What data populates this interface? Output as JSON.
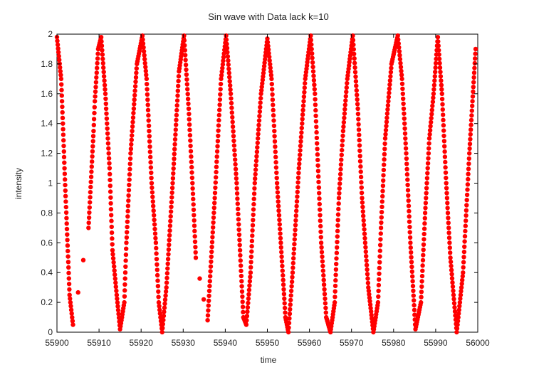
{
  "chart_data": {
    "type": "scatter",
    "title": "Sin wave with Data lack k=10",
    "xlabel": "time",
    "ylabel": "intensity",
    "xlim": [
      55900,
      56000
    ],
    "ylim": [
      0,
      2
    ],
    "xticks": [
      "55900",
      "55910",
      "55920",
      "55930",
      "55940",
      "55950",
      "55960",
      "55970",
      "55980",
      "55990",
      "56000"
    ],
    "yticks": [
      "0",
      "0.2",
      "0.4",
      "0.6",
      "0.8",
      "1",
      "1.2",
      "1.4",
      "1.6",
      "1.8",
      "2"
    ],
    "grid": false,
    "marker_color": "#ff0000",
    "period_approx": 10.1,
    "series": [
      {
        "name": "",
        "description_points": [
          [
            55900.0,
            1.98
          ],
          [
            55901.0,
            1.7
          ],
          [
            55902.0,
            0.95
          ],
          [
            55903.0,
            0.25
          ],
          [
            55903.8,
            0.05
          ],
          [
            55907.5,
            0.7
          ],
          [
            55908.7,
            1.35
          ],
          [
            55909.0,
            1.55
          ],
          [
            55909.8,
            1.9
          ],
          [
            55910.5,
            1.98
          ],
          [
            55911.5,
            1.6
          ],
          [
            55912.5,
            1.1
          ],
          [
            55913.2,
            0.55
          ],
          [
            55914.2,
            0.25
          ],
          [
            55915.0,
            0.02
          ],
          [
            55916.0,
            0.2
          ],
          [
            55916.5,
            0.6
          ],
          [
            55917.5,
            1.2
          ],
          [
            55919.0,
            1.8
          ],
          [
            55920.3,
            1.99
          ],
          [
            55921.3,
            1.7
          ],
          [
            55922.5,
            1.0
          ],
          [
            55923.5,
            0.6
          ],
          [
            55924.2,
            0.2
          ],
          [
            55925.0,
            0.0
          ],
          [
            55926.0,
            0.3
          ],
          [
            55927.5,
            1.0
          ],
          [
            55929.0,
            1.75
          ],
          [
            55930.2,
            1.99
          ],
          [
            55931.3,
            1.5
          ],
          [
            55932.2,
            1.0
          ],
          [
            55933.0,
            0.5
          ],
          [
            55935.8,
            0.08
          ],
          [
            55937.5,
            0.9
          ],
          [
            55939.0,
            1.7
          ],
          [
            55940.2,
            1.99
          ],
          [
            55941.3,
            1.6
          ],
          [
            55942.7,
            1.0
          ],
          [
            55943.5,
            0.55
          ],
          [
            55944.3,
            0.1
          ],
          [
            55945.0,
            0.05
          ],
          [
            55946.0,
            0.4
          ],
          [
            55947.0,
            1.0
          ],
          [
            55948.5,
            1.6
          ],
          [
            55950.0,
            1.97
          ],
          [
            55951.0,
            1.7
          ],
          [
            55952.3,
            1.0
          ],
          [
            55953.2,
            0.6
          ],
          [
            55954.3,
            0.1
          ],
          [
            55955.0,
            0.0
          ],
          [
            55956.0,
            0.4
          ],
          [
            55957.5,
            1.1
          ],
          [
            55959.0,
            1.7
          ],
          [
            55960.3,
            1.99
          ],
          [
            55961.3,
            1.6
          ],
          [
            55962.8,
            0.6
          ],
          [
            55964.0,
            0.1
          ],
          [
            55965.0,
            0.0
          ],
          [
            55966.0,
            0.2
          ],
          [
            55967.0,
            0.9
          ],
          [
            55968.0,
            1.35
          ],
          [
            55969.0,
            1.7
          ],
          [
            55970.3,
            1.99
          ],
          [
            55971.5,
            1.5
          ],
          [
            55972.5,
            0.9
          ],
          [
            55974.0,
            0.3
          ],
          [
            55975.2,
            0.0
          ],
          [
            55976.3,
            0.2
          ],
          [
            55977.0,
            0.7
          ],
          [
            55978.0,
            1.3
          ],
          [
            55979.5,
            1.8
          ],
          [
            55981.0,
            1.99
          ],
          [
            55982.0,
            1.7
          ],
          [
            55983.0,
            1.2
          ],
          [
            55984.0,
            0.6
          ],
          [
            55985.2,
            0.02
          ],
          [
            55986.5,
            0.2
          ],
          [
            55987.5,
            0.8
          ],
          [
            55988.5,
            1.3
          ],
          [
            55989.5,
            1.6
          ],
          [
            55990.5,
            1.98
          ],
          [
            55991.5,
            1.6
          ],
          [
            55992.5,
            1.0
          ],
          [
            55993.5,
            0.5
          ],
          [
            55995.0,
            0.0
          ],
          [
            55996.5,
            0.4
          ],
          [
            55998.0,
            1.2
          ],
          [
            55999.5,
            1.9
          ]
        ]
      }
    ]
  }
}
